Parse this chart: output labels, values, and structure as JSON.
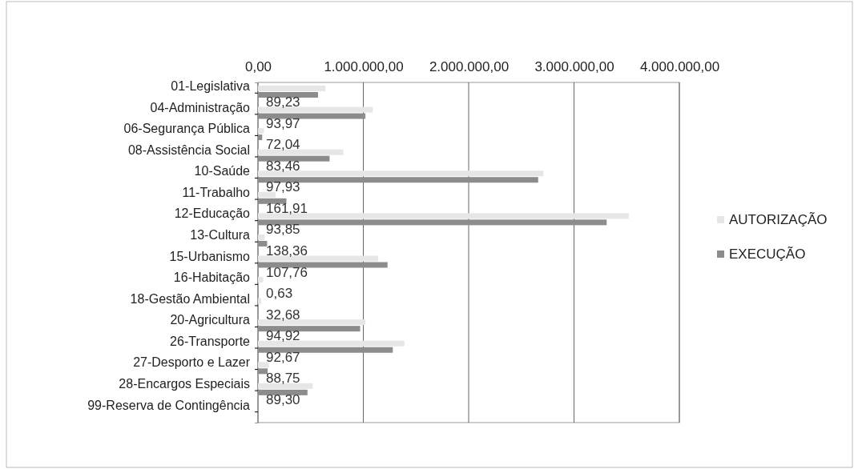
{
  "chart_data": {
    "type": "bar",
    "orientation": "horizontal",
    "categories": [
      "01-Legislativa",
      "04-Administração",
      "06-Segurança Pública",
      "08-Assistência Social",
      "10-Saúde",
      "11-Trabalho",
      "12-Educação",
      "13-Cultura",
      "15-Urbanismo",
      "16-Habitação",
      "18-Gestão Ambiental",
      "20-Agricultura",
      "26-Transporte",
      "27-Desporto e Lazer",
      "28-Encargos Especiais",
      "99-Reserva de Contingência"
    ],
    "series": [
      {
        "name": "AUTORIZAÇÃO",
        "color": "#e6e6e6",
        "values": [
          640000,
          1090000,
          56000,
          810000,
          2710000,
          167000,
          3520000,
          63000,
          1140000,
          50000,
          30000,
          1020000,
          1390000,
          104000,
          520000,
          null
        ]
      },
      {
        "name": "EXECUÇÃO",
        "color": "#8c8c8c",
        "values": [
          570000,
          1020000,
          40000,
          680000,
          2660000,
          270000,
          3310000,
          87000,
          1230000,
          0,
          null,
          970000,
          1280000,
          92000,
          470000,
          null
        ]
      }
    ],
    "annotations": [
      "89,23",
      "93,97",
      "72,04",
      "83,46",
      "97,93",
      "161,91",
      "93,85",
      "138,36",
      "107,76",
      "0,63",
      "32,68",
      "94,92",
      "92,67",
      "88,75",
      "89,30"
    ],
    "xlim": [
      0,
      4000000
    ],
    "xticks": [
      {
        "value": 0,
        "label": "0,00"
      },
      {
        "value": 1000000,
        "label": "1.000.000,00"
      },
      {
        "value": 2000000,
        "label": "2.000.000,00"
      },
      {
        "value": 3000000,
        "label": "3.000.000,00"
      },
      {
        "value": 4000000,
        "label": "4.000.000,00"
      }
    ],
    "grid": "x",
    "legend": "right"
  }
}
